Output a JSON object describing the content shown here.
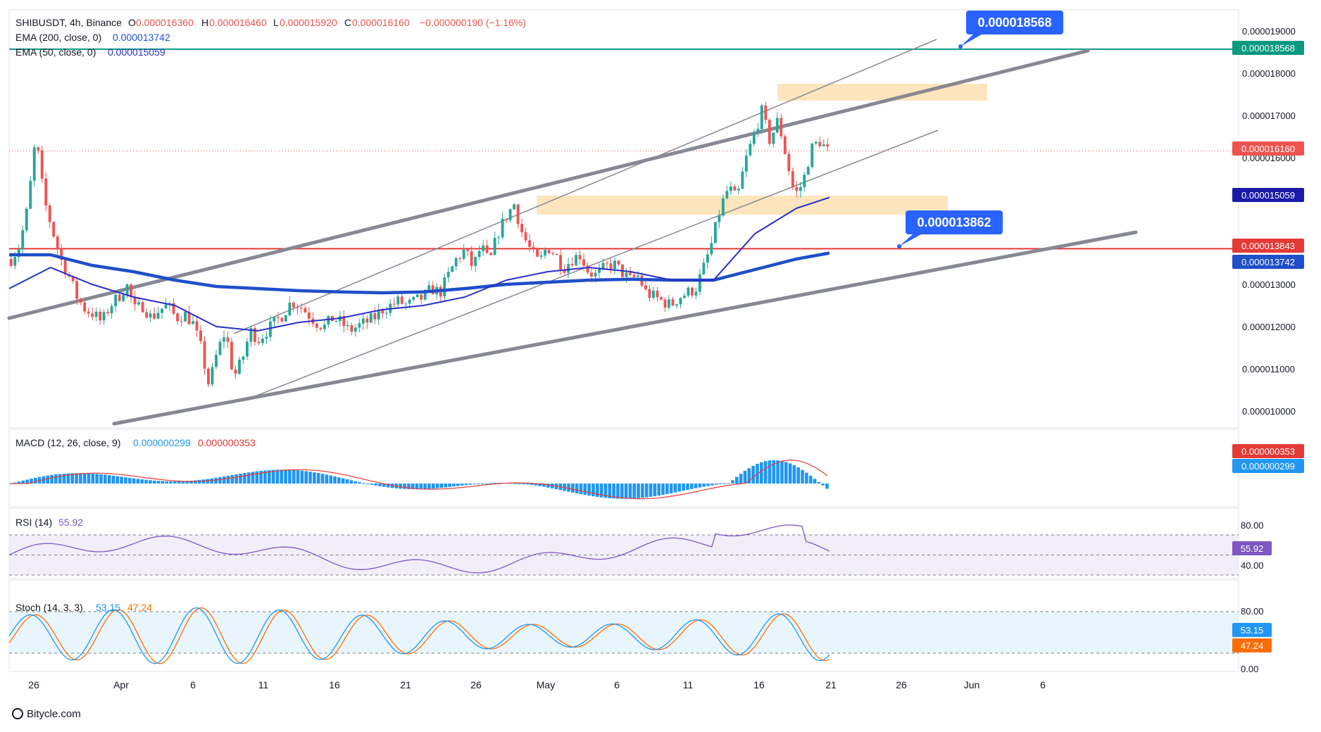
{
  "header": {
    "symbol": "SHIBUSDT, 4h, Binance",
    "ohlc": [
      {
        "k": "O",
        "v": "0.000016360"
      },
      {
        "k": "H",
        "v": "0.000016460"
      },
      {
        "k": "L",
        "v": "0.000015920"
      },
      {
        "k": "C",
        "v": "0.000016160"
      }
    ],
    "change": "−0.000000190 (−1.16%)",
    "ema200_label": "EMA (200, close, 0)",
    "ema200_value": "0.000013742",
    "ema50_label": "EMA (50, close, 0)",
    "ema50_value": "0.000015059"
  },
  "callouts": {
    "top": "0.000018568",
    "mid": "0.000013862"
  },
  "price_tags": {
    "resistance": "0.000018568",
    "last": "0.000016160",
    "ema50": "0.000015059",
    "support": "0.000013843",
    "ema200": "0.000013742"
  },
  "macd": {
    "label": "MACD (12, 26, close, 9)",
    "v1": "0.000000299",
    "v2": "0.000000353",
    "tag_signal": "0.000000353",
    "tag_macd": "0.000000299"
  },
  "rsi": {
    "label": "RSI (14)",
    "value": "55.92",
    "tag": "55.92",
    "ticks": [
      "80.00",
      "40.00"
    ]
  },
  "stoch": {
    "label": "Stoch (14, 3, 3)",
    "k": "53.15",
    "d": "47.24",
    "tag_k": "53.15",
    "tag_d": "47.24",
    "ticks": [
      "80.00",
      "0.00"
    ]
  },
  "watermark": "Bitycle.com",
  "colors": {
    "up": "#26a69a",
    "down": "#ef5350",
    "ema50": "#2a2ec8",
    "ema200": "#1f4fc9",
    "resistance": "#089981",
    "support": "#e53935",
    "channel": "#868993",
    "zone": "#ffe0b2",
    "callout": "#2962ff",
    "rsi": "#7e57c2",
    "stoch_k": "#2196f3",
    "stoch_d": "#ff6d00",
    "macd_hist": "#2196f3",
    "macd_signal": "#e53935"
  },
  "chart_data": {
    "type": "candlestick",
    "title": "SHIBUSDT, 4h, Binance",
    "x_tick_labels": [
      "26",
      "Apr",
      "6",
      "11",
      "16",
      "21",
      "26",
      "May",
      "6",
      "11",
      "16",
      "21",
      "26",
      "Jun",
      "6"
    ],
    "y_tick_labels": [
      "0.000019000",
      "0.000018000",
      "0.000017000",
      "0.000016000",
      "0.000014000",
      "0.000013000",
      "0.000012000",
      "0.000011000",
      "0.000010000"
    ],
    "ylim": [
      9.6e-06,
      1.95e-05
    ],
    "price_path": [
      [
        0,
        13.6
      ],
      [
        1,
        13.9
      ],
      [
        2,
        14.8
      ],
      [
        3,
        16.5
      ],
      [
        4,
        15.0
      ],
      [
        5,
        14.3
      ],
      [
        6,
        13.6
      ],
      [
        7,
        13.2
      ],
      [
        8,
        12.7
      ],
      [
        9,
        12.4
      ],
      [
        10,
        12.3
      ],
      [
        11,
        12.1
      ],
      [
        12,
        12.5
      ],
      [
        13,
        12.7
      ],
      [
        14,
        13.0
      ],
      [
        15,
        12.4
      ],
      [
        16,
        12.5
      ],
      [
        17,
        12.2
      ],
      [
        18,
        12.4
      ],
      [
        19,
        12.5
      ],
      [
        20,
        12.2
      ],
      [
        21,
        12.3
      ],
      [
        22,
        12.1
      ],
      [
        23,
        11.5
      ],
      [
        24,
        10.6
      ],
      [
        25,
        11.4
      ],
      [
        26,
        11.9
      ],
      [
        27,
        10.8
      ],
      [
        28,
        11.2
      ],
      [
        29,
        11.9
      ],
      [
        30,
        11.7
      ],
      [
        31,
        11.9
      ],
      [
        32,
        12.1
      ],
      [
        33,
        12.3
      ],
      [
        34,
        12.6
      ],
      [
        35,
        12.5
      ],
      [
        36,
        12.3
      ],
      [
        37,
        12.1
      ],
      [
        38,
        12.0
      ],
      [
        39,
        12.2
      ],
      [
        40,
        12.1
      ],
      [
        41,
        11.9
      ],
      [
        42,
        12.0
      ],
      [
        43,
        12.1
      ],
      [
        44,
        12.2
      ],
      [
        45,
        12.4
      ],
      [
        46,
        12.5
      ],
      [
        47,
        12.6
      ],
      [
        48,
        12.5
      ],
      [
        49,
        12.6
      ],
      [
        50,
        12.7
      ],
      [
        51,
        12.9
      ],
      [
        52,
        12.8
      ],
      [
        53,
        13.2
      ],
      [
        54,
        13.6
      ],
      [
        55,
        13.8
      ],
      [
        56,
        13.4
      ],
      [
        57,
        13.9
      ],
      [
        58,
        13.5
      ],
      [
        59,
        14.2
      ],
      [
        60,
        14.6
      ],
      [
        61,
        14.9
      ],
      [
        62,
        14.2
      ],
      [
        63,
        13.8
      ],
      [
        64,
        13.5
      ],
      [
        65,
        13.9
      ],
      [
        66,
        13.7
      ],
      [
        67,
        13.4
      ],
      [
        68,
        13.6
      ],
      [
        69,
        13.7
      ],
      [
        70,
        13.3
      ],
      [
        71,
        13.2
      ],
      [
        72,
        13.4
      ],
      [
        73,
        13.5
      ],
      [
        74,
        13.3
      ],
      [
        75,
        13.1
      ],
      [
        76,
        13.2
      ],
      [
        77,
        12.8
      ],
      [
        78,
        12.7
      ],
      [
        79,
        12.6
      ],
      [
        80,
        12.5
      ],
      [
        81,
        12.7
      ],
      [
        82,
        12.8
      ],
      [
        83,
        12.9
      ],
      [
        84,
        13.4
      ],
      [
        85,
        14.0
      ],
      [
        86,
        14.8
      ],
      [
        87,
        15.3
      ],
      [
        88,
        15.0
      ],
      [
        89,
        15.9
      ],
      [
        90,
        16.5
      ],
      [
        91,
        17.1
      ],
      [
        92,
        16.4
      ],
      [
        93,
        16.9
      ],
      [
        94,
        16.0
      ],
      [
        95,
        15.1
      ],
      [
        96,
        15.4
      ],
      [
        97,
        16.2
      ],
      [
        98,
        16.4
      ],
      [
        99,
        16.16
      ]
    ],
    "ema50": [
      [
        0,
        12.9
      ],
      [
        5,
        13.4
      ],
      [
        10,
        13.0
      ],
      [
        15,
        12.7
      ],
      [
        20,
        12.5
      ],
      [
        25,
        12.0
      ],
      [
        30,
        11.9
      ],
      [
        35,
        12.1
      ],
      [
        40,
        12.2
      ],
      [
        45,
        12.4
      ],
      [
        50,
        12.5
      ],
      [
        55,
        12.7
      ],
      [
        60,
        13.1
      ],
      [
        65,
        13.3
      ],
      [
        70,
        13.4
      ],
      [
        75,
        13.3
      ],
      [
        80,
        13.1
      ],
      [
        85,
        13.1
      ],
      [
        90,
        14.2
      ],
      [
        95,
        14.8
      ],
      [
        99,
        15.059
      ]
    ],
    "ema200": [
      [
        0,
        13.7
      ],
      [
        5,
        13.7
      ],
      [
        10,
        13.45
      ],
      [
        15,
        13.3
      ],
      [
        20,
        13.1
      ],
      [
        25,
        12.95
      ],
      [
        30,
        12.9
      ],
      [
        35,
        12.85
      ],
      [
        40,
        12.82
      ],
      [
        45,
        12.8
      ],
      [
        50,
        12.82
      ],
      [
        55,
        12.9
      ],
      [
        60,
        13.0
      ],
      [
        65,
        13.05
      ],
      [
        70,
        13.1
      ],
      [
        75,
        13.12
      ],
      [
        80,
        13.1
      ],
      [
        85,
        13.1
      ],
      [
        90,
        13.35
      ],
      [
        95,
        13.6
      ],
      [
        99,
        13.742
      ]
    ],
    "levels": {
      "resistance": 1.8568e-05,
      "support": 1.3843e-05,
      "last": 1.616e-05
    },
    "macd": {
      "macd": 2.99e-07,
      "signal": 3.53e-07
    },
    "rsi": {
      "value": 55.92,
      "bands": [
        70,
        50,
        30
      ]
    },
    "stoch": {
      "k": 53.15,
      "d": 47.24,
      "bands": [
        80,
        20
      ]
    }
  }
}
